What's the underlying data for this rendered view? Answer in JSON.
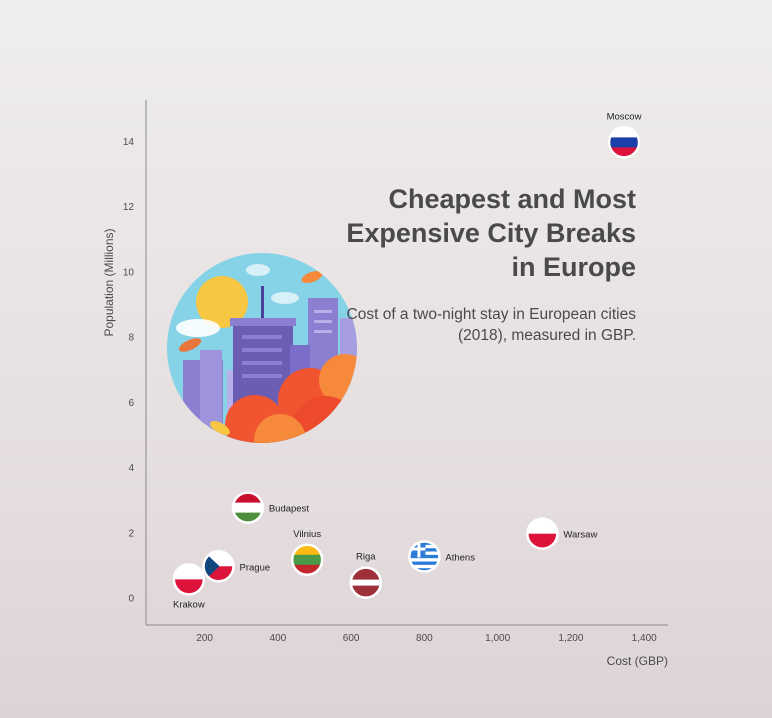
{
  "chart_data": {
    "type": "scatter",
    "title": "Cheapest and Most\nExpensive City Breaks\nin Europe",
    "subtitle": "Cost of a two-night stay in European cities (2018), measured in GBP.",
    "xlabel": "Cost (GBP)",
    "ylabel": "Population (Millions)",
    "xlim": [
      40,
      1465
    ],
    "ylim": [
      -0.8,
      15.3
    ],
    "xticks": [
      200,
      400,
      600,
      800,
      1000,
      1200,
      1400
    ],
    "xtick_labels": [
      "200",
      "400",
      "600",
      "800",
      "1,000",
      "1,200",
      "1,400"
    ],
    "yticks": [
      0,
      2,
      4,
      6,
      8,
      10,
      12,
      14
    ],
    "ytick_labels": [
      "0",
      "2",
      "4",
      "6",
      "8",
      "10",
      "12",
      "14"
    ],
    "grid": false,
    "points": [
      {
        "label": "Moscow",
        "x": 1345,
        "y": 14.0,
        "flag": "russia",
        "label_pos": "above"
      },
      {
        "label": "Warsaw",
        "x": 1122,
        "y": 2.0,
        "flag": "poland",
        "label_pos": "right"
      },
      {
        "label": "Athens",
        "x": 800,
        "y": 1.3,
        "flag": "greece",
        "label_pos": "right"
      },
      {
        "label": "Riga",
        "x": 640,
        "y": 0.5,
        "flag": "latvia",
        "label_pos": "above"
      },
      {
        "label": "Vilnius",
        "x": 480,
        "y": 1.2,
        "flag": "lithuania",
        "label_pos": "above"
      },
      {
        "label": "Budapest",
        "x": 318,
        "y": 2.8,
        "flag": "hungary",
        "label_pos": "right"
      },
      {
        "label": "Prague",
        "x": 238,
        "y": 1.0,
        "flag": "czech-republic",
        "label_pos": "right"
      },
      {
        "label": "Krakow",
        "x": 157,
        "y": 0.6,
        "flag": "poland",
        "label_pos": "below"
      }
    ]
  },
  "colors": {
    "text": "#4a4a4a",
    "axis": "#8a8a8a",
    "flag_red": "#dc143c",
    "russia_blue": "#1c3ea7",
    "hungary_green": "#4f8f3c",
    "hungary_red": "#c8102e",
    "lithuania_yellow": "#fdb913",
    "lithuania_green": "#4a9a48",
    "lithuania_red": "#c1272d",
    "latvia_red": "#9e3039",
    "greece_blue": "#2c7bd6",
    "czech_blue": "#11457e",
    "illustration_sky": "#7fd0e6",
    "illustration_building": "#6b5db4",
    "illustration_sun": "#f7c744",
    "illustration_orange": "#f0552f"
  },
  "illustration": {
    "icon": "city-skyline-illustration"
  }
}
